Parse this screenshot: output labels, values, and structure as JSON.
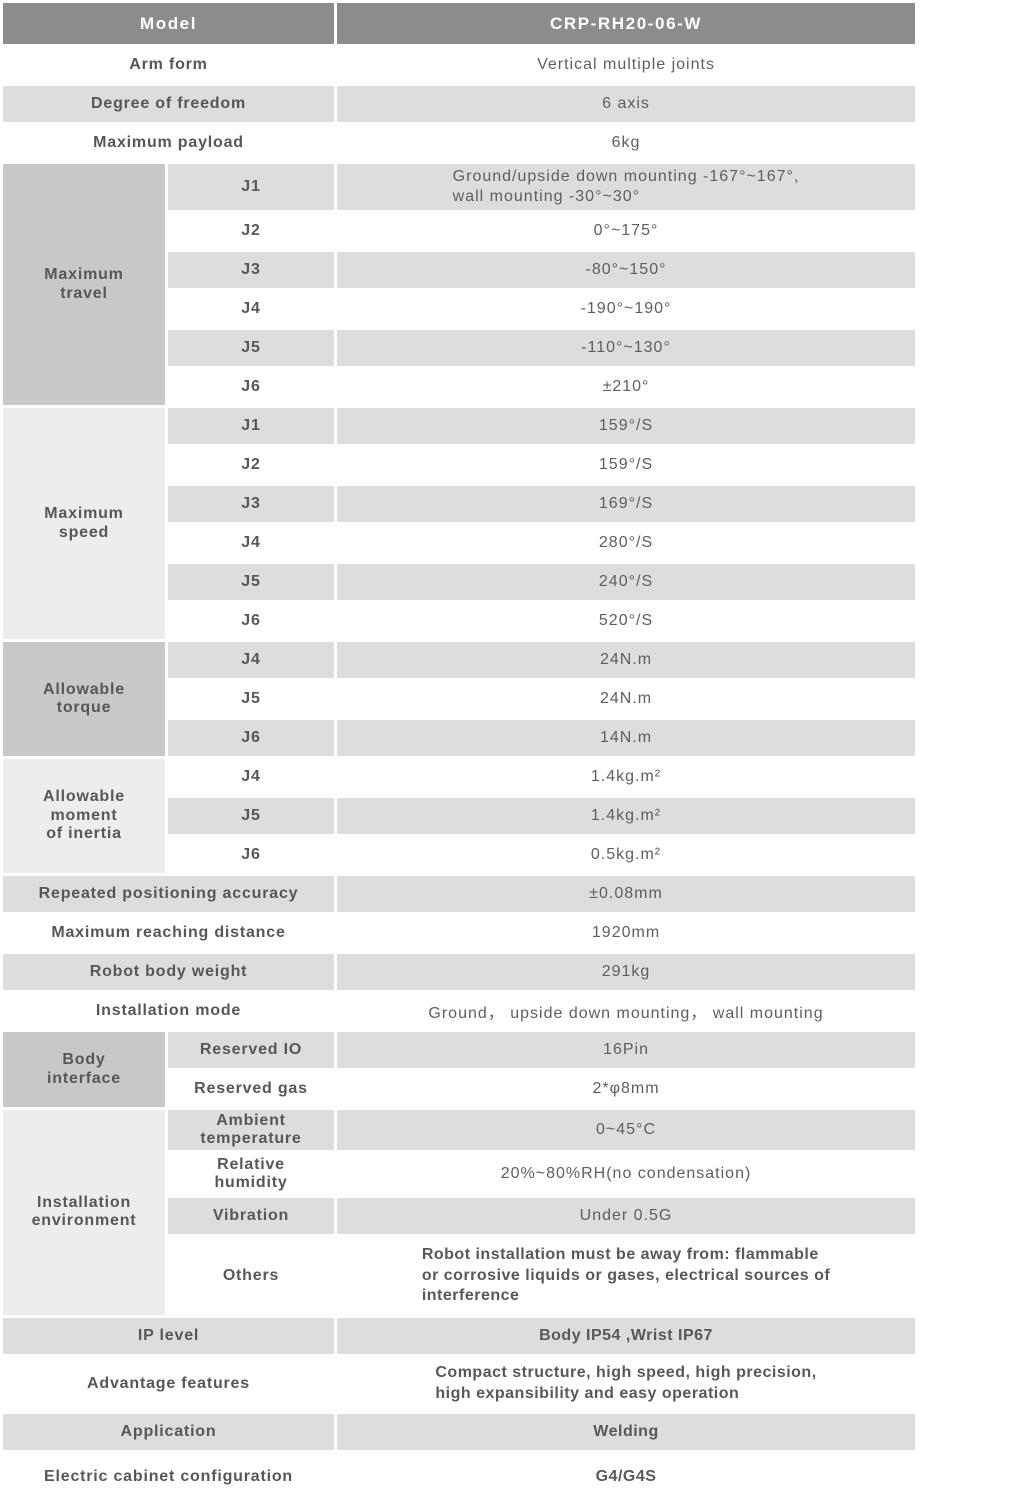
{
  "colors": {
    "header_bg": "#8b8c8e",
    "header_text": "#ffffff",
    "stripe_bg": "#dcddde",
    "section_dark_bg": "#c7c8ca",
    "section_light_bg": "#ededee",
    "label_text": "#55575a",
    "value_text": "#5d5e61",
    "page_bg": "#ffffff"
  },
  "rows": [
    {
      "label": "Model",
      "value": "CRP-RH20-06-W"
    },
    {
      "label": "Arm form",
      "value": "Vertical multiple joints"
    },
    {
      "label": "Degree of freedom",
      "value": "6 axis"
    },
    {
      "label": "Maximum payload",
      "value": "6kg"
    },
    {
      "section": "Maximum travel",
      "section_lines": [
        "Maximum",
        "travel"
      ],
      "sub": "J1",
      "value_lines": [
        "Ground/upside down mounting -167°~167°,",
        "wall mounting -30°~30°"
      ]
    },
    {
      "sub": "J2",
      "value": "0°~175°"
    },
    {
      "sub": "J3",
      "value": "-80°~150°"
    },
    {
      "sub": "J4",
      "value": "-190°~190°"
    },
    {
      "sub": "J5",
      "value": "-110°~130°"
    },
    {
      "sub": "J6",
      "value": "±210°"
    },
    {
      "section": "Maximum speed",
      "section_lines": [
        "Maximum",
        "speed"
      ],
      "sub": "J1",
      "value": "159°/S"
    },
    {
      "sub": "J2",
      "value": "159°/S"
    },
    {
      "sub": "J3",
      "value": "169°/S"
    },
    {
      "sub": "J4",
      "value": "280°/S"
    },
    {
      "sub": "J5",
      "value": "240°/S"
    },
    {
      "sub": "J6",
      "value": "520°/S"
    },
    {
      "section": "Allowable torque",
      "section_lines": [
        "Allowable",
        "torque"
      ],
      "sub": "J4",
      "value": "24N.m"
    },
    {
      "sub": "J5",
      "value": "24N.m"
    },
    {
      "sub": "J6",
      "value": "14N.m"
    },
    {
      "section": "Allowable moment of inertia",
      "section_lines": [
        "Allowable",
        "moment",
        "of inertia"
      ],
      "sub": "J4",
      "value": "1.4kg.m²"
    },
    {
      "sub": "J5",
      "value": "1.4kg.m²"
    },
    {
      "sub": "J6",
      "value": "0.5kg.m²"
    },
    {
      "label": "Repeated positioning accuracy",
      "value": "±0.08mm"
    },
    {
      "label": "Maximum reaching distance",
      "value": "1920mm"
    },
    {
      "label": "Robot body weight",
      "value": "291kg"
    },
    {
      "label": "Installation mode",
      "value": "Ground， upside down mounting， wall mounting"
    },
    {
      "section": "Body interface",
      "section_lines": [
        "Body",
        "interface"
      ],
      "sub": "Reserved IO",
      "value": "16Pin"
    },
    {
      "sub": "Reserved gas",
      "value": "2*φ8mm"
    },
    {
      "section": "Installation environment",
      "section_lines": [
        "Installation",
        "environment"
      ],
      "sub": "Ambient temperature",
      "sub_lines": [
        "Ambient",
        "temperature"
      ],
      "value": "0~45°C"
    },
    {
      "sub": "Relative humidity",
      "sub_lines": [
        "Relative",
        "humidity"
      ],
      "value": "20%~80%RH(no condensation)"
    },
    {
      "sub": "Vibration",
      "value": "Under 0.5G"
    },
    {
      "sub": "Others",
      "value_lines": [
        "Robot installation must be away from: flammable",
        "or corrosive liquids or gases, electrical sources of",
        "interference"
      ]
    },
    {
      "label": "IP level",
      "value": "Body IP54 ,Wrist IP67"
    },
    {
      "label": "Advantage features",
      "value_lines": [
        "Compact structure, high speed, high precision,",
        "high expansibility and easy operation"
      ]
    },
    {
      "label": "Application",
      "value": "Welding"
    },
    {
      "label": "Electric cabinet configuration",
      "value": "G4/G4S"
    }
  ]
}
